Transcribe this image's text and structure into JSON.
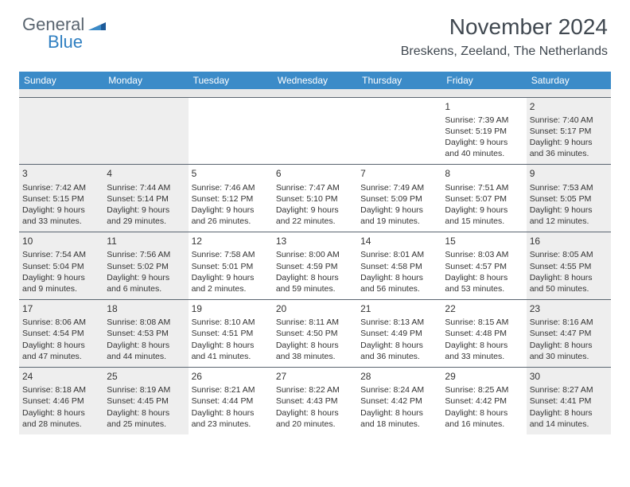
{
  "logo": {
    "general": "General",
    "blue": "Blue"
  },
  "title": "November 2024",
  "location": "Breskens, Zeeland, The Netherlands",
  "colors": {
    "header_bg": "#3b8bc8",
    "header_text": "#ffffff",
    "shaded_cell": "#eeeeee",
    "border": "#5a6570",
    "logo_gray": "#5a6570",
    "logo_blue": "#2f7fc1"
  },
  "weekdays": [
    "Sunday",
    "Monday",
    "Tuesday",
    "Wednesday",
    "Thursday",
    "Friday",
    "Saturday"
  ],
  "weeks": [
    [
      {
        "n": "",
        "sr": "",
        "ss": "",
        "dl": "",
        "shaded": true
      },
      {
        "n": "",
        "sr": "",
        "ss": "",
        "dl": "",
        "shaded": true
      },
      {
        "n": "",
        "sr": "",
        "ss": "",
        "dl": "",
        "shaded": false
      },
      {
        "n": "",
        "sr": "",
        "ss": "",
        "dl": "",
        "shaded": false
      },
      {
        "n": "",
        "sr": "",
        "ss": "",
        "dl": "",
        "shaded": false
      },
      {
        "n": "1",
        "sr": "Sunrise: 7:39 AM",
        "ss": "Sunset: 5:19 PM",
        "dl": "Daylight: 9 hours and 40 minutes.",
        "shaded": false
      },
      {
        "n": "2",
        "sr": "Sunrise: 7:40 AM",
        "ss": "Sunset: 5:17 PM",
        "dl": "Daylight: 9 hours and 36 minutes.",
        "shaded": true
      }
    ],
    [
      {
        "n": "3",
        "sr": "Sunrise: 7:42 AM",
        "ss": "Sunset: 5:15 PM",
        "dl": "Daylight: 9 hours and 33 minutes.",
        "shaded": true
      },
      {
        "n": "4",
        "sr": "Sunrise: 7:44 AM",
        "ss": "Sunset: 5:14 PM",
        "dl": "Daylight: 9 hours and 29 minutes.",
        "shaded": true
      },
      {
        "n": "5",
        "sr": "Sunrise: 7:46 AM",
        "ss": "Sunset: 5:12 PM",
        "dl": "Daylight: 9 hours and 26 minutes.",
        "shaded": false
      },
      {
        "n": "6",
        "sr": "Sunrise: 7:47 AM",
        "ss": "Sunset: 5:10 PM",
        "dl": "Daylight: 9 hours and 22 minutes.",
        "shaded": false
      },
      {
        "n": "7",
        "sr": "Sunrise: 7:49 AM",
        "ss": "Sunset: 5:09 PM",
        "dl": "Daylight: 9 hours and 19 minutes.",
        "shaded": false
      },
      {
        "n": "8",
        "sr": "Sunrise: 7:51 AM",
        "ss": "Sunset: 5:07 PM",
        "dl": "Daylight: 9 hours and 15 minutes.",
        "shaded": false
      },
      {
        "n": "9",
        "sr": "Sunrise: 7:53 AM",
        "ss": "Sunset: 5:05 PM",
        "dl": "Daylight: 9 hours and 12 minutes.",
        "shaded": true
      }
    ],
    [
      {
        "n": "10",
        "sr": "Sunrise: 7:54 AM",
        "ss": "Sunset: 5:04 PM",
        "dl": "Daylight: 9 hours and 9 minutes.",
        "shaded": true
      },
      {
        "n": "11",
        "sr": "Sunrise: 7:56 AM",
        "ss": "Sunset: 5:02 PM",
        "dl": "Daylight: 9 hours and 6 minutes.",
        "shaded": true
      },
      {
        "n": "12",
        "sr": "Sunrise: 7:58 AM",
        "ss": "Sunset: 5:01 PM",
        "dl": "Daylight: 9 hours and 2 minutes.",
        "shaded": false
      },
      {
        "n": "13",
        "sr": "Sunrise: 8:00 AM",
        "ss": "Sunset: 4:59 PM",
        "dl": "Daylight: 8 hours and 59 minutes.",
        "shaded": false
      },
      {
        "n": "14",
        "sr": "Sunrise: 8:01 AM",
        "ss": "Sunset: 4:58 PM",
        "dl": "Daylight: 8 hours and 56 minutes.",
        "shaded": false
      },
      {
        "n": "15",
        "sr": "Sunrise: 8:03 AM",
        "ss": "Sunset: 4:57 PM",
        "dl": "Daylight: 8 hours and 53 minutes.",
        "shaded": false
      },
      {
        "n": "16",
        "sr": "Sunrise: 8:05 AM",
        "ss": "Sunset: 4:55 PM",
        "dl": "Daylight: 8 hours and 50 minutes.",
        "shaded": true
      }
    ],
    [
      {
        "n": "17",
        "sr": "Sunrise: 8:06 AM",
        "ss": "Sunset: 4:54 PM",
        "dl": "Daylight: 8 hours and 47 minutes.",
        "shaded": true
      },
      {
        "n": "18",
        "sr": "Sunrise: 8:08 AM",
        "ss": "Sunset: 4:53 PM",
        "dl": "Daylight: 8 hours and 44 minutes.",
        "shaded": true
      },
      {
        "n": "19",
        "sr": "Sunrise: 8:10 AM",
        "ss": "Sunset: 4:51 PM",
        "dl": "Daylight: 8 hours and 41 minutes.",
        "shaded": false
      },
      {
        "n": "20",
        "sr": "Sunrise: 8:11 AM",
        "ss": "Sunset: 4:50 PM",
        "dl": "Daylight: 8 hours and 38 minutes.",
        "shaded": false
      },
      {
        "n": "21",
        "sr": "Sunrise: 8:13 AM",
        "ss": "Sunset: 4:49 PM",
        "dl": "Daylight: 8 hours and 36 minutes.",
        "shaded": false
      },
      {
        "n": "22",
        "sr": "Sunrise: 8:15 AM",
        "ss": "Sunset: 4:48 PM",
        "dl": "Daylight: 8 hours and 33 minutes.",
        "shaded": false
      },
      {
        "n": "23",
        "sr": "Sunrise: 8:16 AM",
        "ss": "Sunset: 4:47 PM",
        "dl": "Daylight: 8 hours and 30 minutes.",
        "shaded": true
      }
    ],
    [
      {
        "n": "24",
        "sr": "Sunrise: 8:18 AM",
        "ss": "Sunset: 4:46 PM",
        "dl": "Daylight: 8 hours and 28 minutes.",
        "shaded": true
      },
      {
        "n": "25",
        "sr": "Sunrise: 8:19 AM",
        "ss": "Sunset: 4:45 PM",
        "dl": "Daylight: 8 hours and 25 minutes.",
        "shaded": true
      },
      {
        "n": "26",
        "sr": "Sunrise: 8:21 AM",
        "ss": "Sunset: 4:44 PM",
        "dl": "Daylight: 8 hours and 23 minutes.",
        "shaded": false
      },
      {
        "n": "27",
        "sr": "Sunrise: 8:22 AM",
        "ss": "Sunset: 4:43 PM",
        "dl": "Daylight: 8 hours and 20 minutes.",
        "shaded": false
      },
      {
        "n": "28",
        "sr": "Sunrise: 8:24 AM",
        "ss": "Sunset: 4:42 PM",
        "dl": "Daylight: 8 hours and 18 minutes.",
        "shaded": false
      },
      {
        "n": "29",
        "sr": "Sunrise: 8:25 AM",
        "ss": "Sunset: 4:42 PM",
        "dl": "Daylight: 8 hours and 16 minutes.",
        "shaded": false
      },
      {
        "n": "30",
        "sr": "Sunrise: 8:27 AM",
        "ss": "Sunset: 4:41 PM",
        "dl": "Daylight: 8 hours and 14 minutes.",
        "shaded": true
      }
    ]
  ]
}
